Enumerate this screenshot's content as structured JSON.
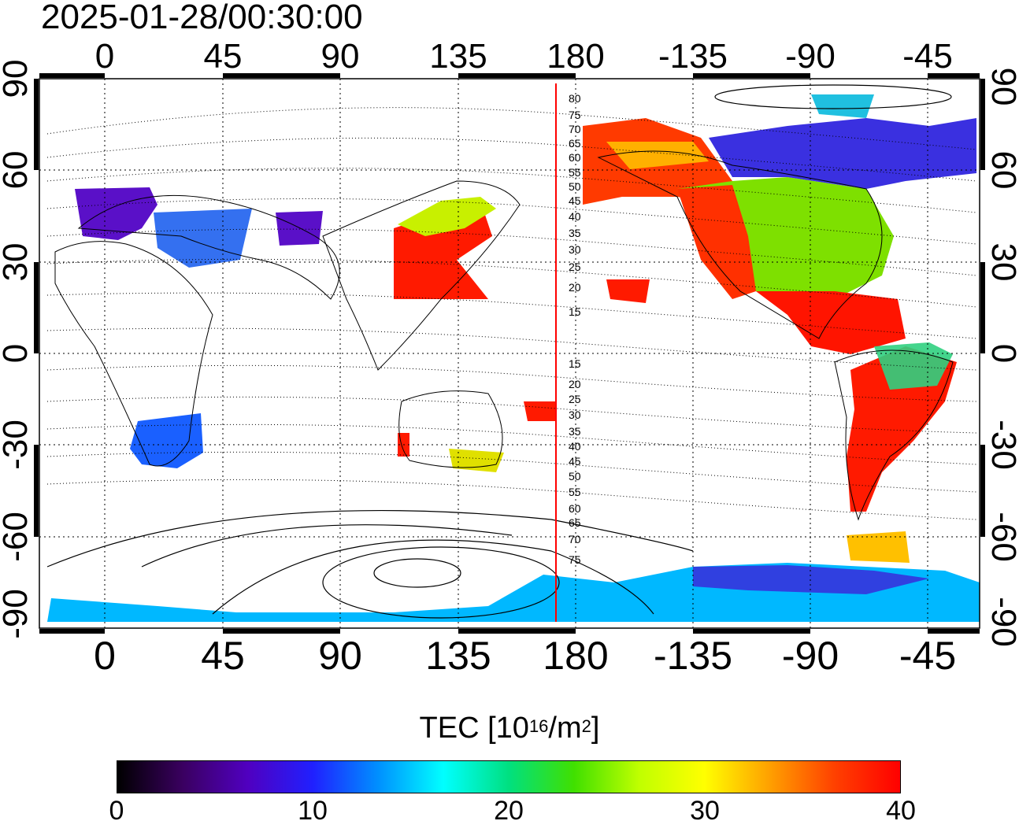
{
  "timestamp": "2025-01-28/00:30:00",
  "map": {
    "projection": "equirectangular",
    "lon_range": [
      -20,
      340
    ],
    "lat_range": [
      -90,
      90
    ],
    "top_lon_ticks": [
      "0",
      "45",
      "90",
      "135",
      "180",
      "-135",
      "-90",
      "-45"
    ],
    "bottom_lon_ticks": [
      "0",
      "45",
      "90",
      "135",
      "180",
      "-135",
      "-90",
      "-45"
    ],
    "left_lat_ticks": [
      "90",
      "60",
      "30",
      "0",
      "-30",
      "-60",
      "-90"
    ],
    "right_lat_ticks": [
      "90",
      "60",
      "30",
      "0",
      "-30",
      "-60",
      "-90"
    ],
    "grid": true,
    "terminator_line_color": "#ff0000",
    "contour_labels": [
      "80",
      "75",
      "70",
      "65",
      "60",
      "55",
      "50",
      "45",
      "40",
      "35",
      "30",
      "25",
      "20",
      "15",
      "15",
      "20",
      "25",
      "30",
      "35",
      "40",
      "45",
      "50",
      "55",
      "60",
      "65",
      "70",
      "75"
    ],
    "data_patches": [
      {
        "region": "Europe",
        "color": "#5a10c8"
      },
      {
        "region": "East Asia / Japan",
        "color": "#ff1a00"
      },
      {
        "region": "North America",
        "color": "#7ee000"
      },
      {
        "region": "Alaska",
        "color": "#ff4000"
      },
      {
        "region": "Canada",
        "color": "#3a20e0"
      },
      {
        "region": "South America",
        "color": "#ff1a00"
      },
      {
        "region": "Southern Africa",
        "color": "#1a60ff"
      },
      {
        "region": "Antarctica",
        "color": "#00b8ff"
      }
    ]
  },
  "colorbar": {
    "title_prefix": "TEC  [10",
    "title_exp": "16",
    "title_mid": "/m",
    "title_exp2": "2",
    "title_suffix": "]",
    "min": 0,
    "max": 40,
    "tick_labels": [
      "0",
      "10",
      "20",
      "30",
      "40"
    ],
    "colors": [
      "#000000",
      "#3a0060",
      "#5000c0",
      "#2020ff",
      "#0090ff",
      "#00ffff",
      "#00e080",
      "#40e000",
      "#c0ff00",
      "#ffff00",
      "#ffa000",
      "#ff4000",
      "#ff0000"
    ]
  }
}
